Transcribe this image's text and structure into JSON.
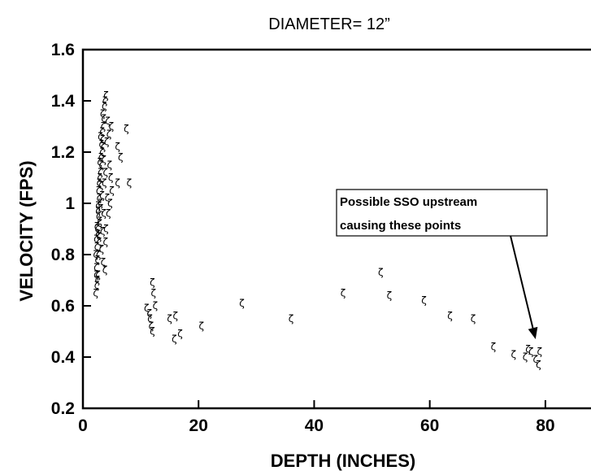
{
  "chart_data": {
    "type": "scatter",
    "title": "DIAMETER= 12”",
    "xlabel": "DEPTH (INCHES)",
    "ylabel": "VELOCITY (FPS)",
    "xlim": [
      0,
      90
    ],
    "ylim": [
      0.2,
      1.6
    ],
    "x_ticks": [
      "0",
      "20",
      "40",
      "60",
      "80"
    ],
    "y_ticks": [
      "0.2",
      "0.4",
      "0.6",
      "0.8",
      "1",
      "1.2",
      "1.4",
      "1.6"
    ],
    "grid": false,
    "legend": "none",
    "marker": "ζ",
    "series": [
      {
        "points": [
          [
            2.2,
            0.65
          ],
          [
            2.4,
            0.68
          ],
          [
            2.6,
            0.72
          ],
          [
            2.3,
            0.75
          ],
          [
            2.5,
            0.78
          ],
          [
            2.7,
            0.8
          ],
          [
            2.4,
            0.83
          ],
          [
            2.8,
            0.85
          ],
          [
            2.6,
            0.88
          ],
          [
            2.5,
            0.9
          ],
          [
            2.9,
            0.92
          ],
          [
            2.7,
            0.95
          ],
          [
            2.6,
            0.97
          ],
          [
            3.0,
            1.0
          ],
          [
            2.8,
            1.02
          ],
          [
            2.7,
            1.05
          ],
          [
            3.1,
            1.07
          ],
          [
            2.9,
            1.1
          ],
          [
            3.0,
            1.12
          ],
          [
            3.2,
            1.15
          ],
          [
            3.1,
            1.18
          ],
          [
            3.3,
            1.2
          ],
          [
            3.2,
            1.23
          ],
          [
            3.4,
            1.25
          ],
          [
            3.3,
            1.28
          ],
          [
            3.5,
            1.3
          ],
          [
            3.6,
            1.33
          ],
          [
            3.4,
            1.35
          ],
          [
            3.7,
            1.38
          ],
          [
            3.8,
            1.4
          ],
          [
            4.0,
            1.42
          ],
          [
            3.5,
            1.22
          ],
          [
            3.6,
            1.17
          ],
          [
            3.9,
            1.12
          ],
          [
            3.7,
            1.08
          ],
          [
            3.3,
            1.03
          ],
          [
            3.1,
            0.98
          ],
          [
            2.9,
            0.93
          ],
          [
            2.8,
            0.87
          ],
          [
            3.2,
            0.82
          ],
          [
            3.5,
            0.77
          ],
          [
            3.8,
            0.74
          ],
          [
            2.5,
            0.7
          ],
          [
            2.3,
            0.72
          ],
          [
            4.2,
            1.02
          ],
          [
            4.4,
            0.96
          ],
          [
            4.0,
            0.9
          ],
          [
            3.9,
            0.85
          ],
          [
            4.5,
            1.27
          ],
          [
            4.6,
            1.15
          ],
          [
            4.3,
            1.32
          ],
          [
            4.1,
            1.24
          ],
          [
            4.8,
            1.1
          ],
          [
            5.0,
            1.05
          ],
          [
            4.7,
            1.0
          ],
          [
            3.0,
            1.26
          ],
          [
            2.9,
            1.16
          ],
          [
            2.8,
            1.08
          ],
          [
            2.6,
            0.99
          ],
          [
            2.4,
            0.91
          ],
          [
            2.3,
            0.86
          ],
          [
            2.2,
            0.8
          ],
          [
            3.4,
            0.89
          ],
          [
            3.6,
            0.96
          ],
          [
            4.9,
            1.3
          ],
          [
            7.5,
            1.29
          ],
          [
            8.0,
            1.08
          ],
          [
            6.0,
            1.22
          ],
          [
            6.5,
            1.18
          ],
          [
            6.0,
            1.08
          ],
          [
            11.0,
            0.59
          ],
          [
            11.5,
            0.57
          ],
          [
            11.8,
            0.52
          ],
          [
            11.6,
            0.55
          ],
          [
            12.0,
            0.69
          ],
          [
            12.2,
            0.65
          ],
          [
            12.5,
            0.6
          ],
          [
            12.0,
            0.5
          ],
          [
            15.0,
            0.55
          ],
          [
            16.0,
            0.56
          ],
          [
            15.8,
            0.47
          ],
          [
            16.8,
            0.49
          ],
          [
            20.5,
            0.52
          ],
          [
            27.5,
            0.61
          ],
          [
            36.0,
            0.55
          ],
          [
            45.0,
            0.65
          ],
          [
            51.5,
            0.73
          ],
          [
            53.0,
            0.64
          ],
          [
            59.0,
            0.62
          ],
          [
            63.5,
            0.56
          ],
          [
            67.5,
            0.55
          ],
          [
            71.0,
            0.44
          ],
          [
            74.5,
            0.41
          ],
          [
            76.5,
            0.4
          ],
          [
            77.0,
            0.43
          ],
          [
            77.5,
            0.42
          ],
          [
            78.3,
            0.39
          ],
          [
            78.8,
            0.37
          ],
          [
            79.0,
            0.42
          ]
        ]
      }
    ],
    "annotation": {
      "text_lines": [
        "Possible SSO upstream",
        "causing these points"
      ],
      "arrow_to": [
        78.3,
        0.47
      ]
    }
  }
}
